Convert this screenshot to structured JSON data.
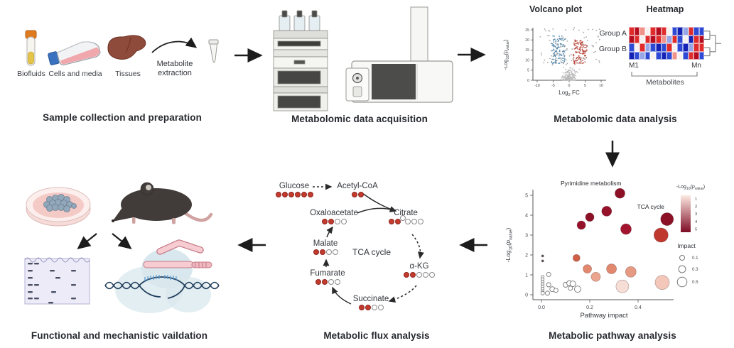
{
  "panels": {
    "sample": {
      "title": "Sample collection and preparation",
      "items": [
        {
          "label": "Biofluids"
        },
        {
          "label": "Cells and media"
        },
        {
          "label": "Tissues"
        }
      ],
      "extraction_label": "Metabolite extraction"
    },
    "acquisition": {
      "title": "Metabolomic data acquisition"
    },
    "analysis": {
      "title": "Metabolomic data analysis"
    },
    "pathway": {
      "title": "Metabolic pathway analysis"
    },
    "flux": {
      "title": "Metabolic flux analysis",
      "center_label": "TCA cycle",
      "metabolites": [
        {
          "name": "Glucose",
          "carbons": "111111"
        },
        {
          "name": "Acetyl-CoA",
          "carbons": "11"
        },
        {
          "name": "Oxaloacetate",
          "carbons": "1100"
        },
        {
          "name": "Citrate",
          "carbons": "110000",
          "raised": 2
        },
        {
          "name": "Malate",
          "carbons": "1100"
        },
        {
          "name": "α-KG",
          "carbons": "11000"
        },
        {
          "name": "Fumarate",
          "carbons": "1100"
        },
        {
          "name": "Succinate",
          "carbons": "1100"
        }
      ]
    },
    "validation": {
      "title": "Functional and mechanistic vaildation"
    }
  },
  "chart_data": [
    {
      "type": "scatter",
      "name": "volcano",
      "title": "Volcano plot",
      "xlabel_parts": [
        {
          "t": "Log"
        },
        {
          "t": "2",
          "sub": true
        },
        {
          "t": " FC"
        }
      ],
      "ylabel_parts": [
        {
          "t": "-Log"
        },
        {
          "t": "10",
          "sub": true
        },
        {
          "t": "(p",
          "it": true
        },
        {
          "t": "value",
          "sub": true,
          "it": true
        },
        {
          "t": ")"
        }
      ],
      "xlim": [
        -10,
        10
      ],
      "ylim": [
        0,
        27
      ],
      "xticks": [
        -10,
        -5,
        0,
        5,
        10
      ],
      "yticks": [
        0,
        5,
        10,
        15,
        20,
        25
      ],
      "seed": 42,
      "clusters": [
        {
          "name": "downregulated",
          "color": "#4c7fa3",
          "count": 115,
          "x": [
            -5.6,
            -1.2
          ],
          "y": [
            8,
            22
          ]
        },
        {
          "name": "upregulated",
          "color": "#b23a2e",
          "count": 115,
          "x": [
            1.2,
            5.6
          ],
          "y": [
            8,
            20
          ]
        },
        {
          "name": "nonsig-funnel",
          "color": "#b9b9b9",
          "count": 170,
          "dist": "funnel",
          "x": [
            -3.2,
            3.2
          ],
          "y": [
            0,
            7
          ]
        },
        {
          "name": "nonsig-scatter",
          "color": "#9c9c9c",
          "count": 75,
          "x": [
            -9.6,
            9.6
          ],
          "y": [
            7,
            26
          ]
        }
      ]
    },
    {
      "type": "heatmap",
      "title": "Heatmap",
      "row_groups": [
        "Group A",
        "Group B"
      ],
      "col_first": "M1",
      "col_last": "Mn",
      "col_axis": "Metabolites",
      "palette": {
        "3": "#b50d1f",
        "2": "#df2b2b",
        "1": "#f0918a",
        "0": "#f7f1f0",
        "-1": "#97a6e6",
        "-2": "#2e49d4",
        "-3": "#1322b5"
      },
      "grid": [
        [
          2,
          3,
          1,
          0,
          2,
          3,
          2,
          0,
          -2,
          -3,
          -1,
          2,
          -2,
          -2
        ],
        [
          3,
          2,
          0,
          2,
          3,
          2,
          1,
          -1,
          2,
          -2,
          0,
          -3,
          2,
          3
        ],
        [
          -2,
          0,
          2,
          -1,
          -2,
          -3,
          -2,
          2,
          0,
          -2,
          -3,
          -1,
          2,
          2
        ],
        [
          -3,
          -2,
          -1,
          -2,
          0,
          -2,
          -3,
          -2,
          1,
          0,
          -2,
          2,
          3,
          -2
        ]
      ]
    },
    {
      "type": "scatter",
      "name": "pathway-bubbles",
      "xlabel": "Pathway impact",
      "ylabel_parts": [
        {
          "t": "-Log"
        },
        {
          "t": "10",
          "sub": true
        },
        {
          "t": "(p",
          "it": true
        },
        {
          "t": "value",
          "sub": true,
          "it": true
        },
        {
          "t": ")"
        }
      ],
      "xlim": [
        0,
        0.56
      ],
      "ylim": [
        0,
        5.6
      ],
      "xticks": [
        "0.0",
        "0.2",
        "0.4"
      ],
      "yticks": [
        0,
        1,
        2,
        3,
        4,
        5
      ],
      "annotations": [
        {
          "text": "Pyrimidine metabolism",
          "x": 0.205,
          "y": 5.5
        },
        {
          "text": "TCA cycle",
          "x": 0.452,
          "y": 4.32
        }
      ],
      "legend": {
        "color_title_parts": [
          {
            "t": "-Log"
          },
          {
            "t": "10",
            "sub": true
          },
          {
            "t": "(p",
            "it": true
          },
          {
            "t": "value",
            "sub": true,
            "it": true
          },
          {
            "t": ")"
          }
        ],
        "color_ticks": [
          1,
          2,
          3,
          4,
          5
        ],
        "gradient_top": "#fdeae3",
        "gradient_bottom": "#7e0c24",
        "size_title": "Impact",
        "size_ticks": [
          "0.1",
          "0.3",
          "0.5"
        ]
      },
      "points": [
        {
          "x": 0.325,
          "y": 5.1,
          "r": 7.0,
          "c": "#8c1127"
        },
        {
          "x": 0.27,
          "y": 4.2,
          "r": 7.0,
          "c": "#96122b"
        },
        {
          "x": 0.2,
          "y": 3.9,
          "r": 6.0,
          "c": "#8c1127"
        },
        {
          "x": 0.165,
          "y": 3.5,
          "r": 6.0,
          "c": "#96122b"
        },
        {
          "x": 0.35,
          "y": 3.3,
          "r": 7.5,
          "c": "#a3142e"
        },
        {
          "x": 0.52,
          "y": 3.8,
          "r": 9.0,
          "c": "#8c1127"
        },
        {
          "x": 0.495,
          "y": 3.0,
          "r": 10.0,
          "c": "#c0392f"
        },
        {
          "x": 0.145,
          "y": 1.85,
          "r": 5.0,
          "c": "#cf5f45"
        },
        {
          "x": 0.19,
          "y": 1.3,
          "r": 6.0,
          "c": "#e2886e"
        },
        {
          "x": 0.225,
          "y": 0.9,
          "r": 6.5,
          "c": "#eba58f"
        },
        {
          "x": 0.29,
          "y": 1.3,
          "r": 7.0,
          "c": "#e2886e"
        },
        {
          "x": 0.37,
          "y": 1.15,
          "r": 7.5,
          "c": "#e79a82"
        },
        {
          "x": 0.335,
          "y": 0.42,
          "r": 9.0,
          "c": "#f6ddd6"
        },
        {
          "x": 0.5,
          "y": 0.62,
          "r": 10.0,
          "c": "#f3c7ba"
        },
        {
          "x": 0.005,
          "y": 1.95,
          "r": 1.6,
          "c": "#555555"
        },
        {
          "x": 0.005,
          "y": 1.7,
          "r": 1.6,
          "c": "#555555"
        },
        {
          "x": 0.03,
          "y": 1.02,
          "r": 3.0,
          "c": "#ffffff"
        },
        {
          "x": 0.005,
          "y": 0.9,
          "r": 2.0,
          "c": "#ffffff"
        },
        {
          "x": 0.005,
          "y": 0.78,
          "r": 2.0,
          "c": "#ffffff"
        },
        {
          "x": 0.005,
          "y": 0.66,
          "r": 2.0,
          "c": "#ffffff"
        },
        {
          "x": 0.005,
          "y": 0.54,
          "r": 2.0,
          "c": "#ffffff"
        },
        {
          "x": 0.005,
          "y": 0.42,
          "r": 2.0,
          "c": "#ffffff"
        },
        {
          "x": 0.005,
          "y": 0.3,
          "r": 2.0,
          "c": "#ffffff"
        },
        {
          "x": 0.005,
          "y": 0.18,
          "r": 2.0,
          "c": "#ffffff"
        },
        {
          "x": 0.005,
          "y": 0.08,
          "r": 2.5,
          "c": "#ffffff"
        },
        {
          "x": 0.025,
          "y": 0.08,
          "r": 3.0,
          "c": "#ffffff"
        },
        {
          "x": 0.03,
          "y": 0.5,
          "r": 3.0,
          "c": "#ffffff"
        },
        {
          "x": 0.045,
          "y": 0.28,
          "r": 3.5,
          "c": "#ffffff"
        },
        {
          "x": 0.06,
          "y": 0.22,
          "r": 3.0,
          "c": "#ffffff"
        },
        {
          "x": 0.1,
          "y": 0.5,
          "r": 3.5,
          "c": "#ffffff"
        },
        {
          "x": 0.115,
          "y": 0.58,
          "r": 3.5,
          "c": "#ffffff"
        },
        {
          "x": 0.13,
          "y": 0.55,
          "r": 4.0,
          "c": "#ffffff"
        },
        {
          "x": 0.12,
          "y": 0.33,
          "r": 3.0,
          "c": "#ffffff"
        },
        {
          "x": 0.15,
          "y": 0.28,
          "r": 4.5,
          "c": "#ffffff"
        }
      ]
    }
  ]
}
